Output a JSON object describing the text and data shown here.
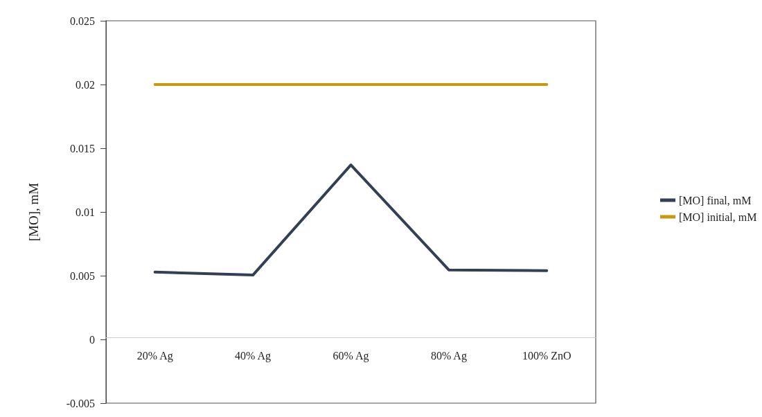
{
  "chart_data": {
    "type": "line",
    "ylabel": "[MO], mM",
    "categories": [
      "20% Ag",
      "40% Ag",
      "60% Ag",
      "80% Ag",
      "100% ZnO"
    ],
    "series": [
      {
        "name": "[MO] final, mM",
        "color": "#323f55",
        "values": [
          0.00528,
          0.00505,
          0.01369,
          0.00545,
          0.0054
        ]
      },
      {
        "name": "[MO] initial, mM",
        "color": "#c9980c",
        "values": [
          0.02,
          0.02,
          0.02,
          0.02,
          0.02
        ]
      }
    ],
    "ylim": [
      -0.005,
      0.025
    ],
    "yticks": [
      -0.005,
      0,
      0.005,
      0.01,
      0.015,
      0.02,
      0.025
    ],
    "grid": false,
    "legend": "right",
    "marker": "none",
    "line_style": "solid"
  }
}
